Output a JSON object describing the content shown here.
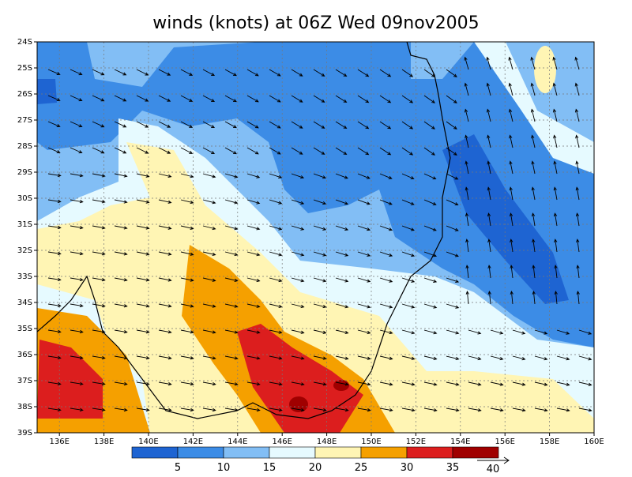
{
  "title": "winds (knots) at 06Z Wed 09nov2005",
  "lat_labels": [
    "24S",
    "25S",
    "26S",
    "27S",
    "28S",
    "29S",
    "30S",
    "31S",
    "32S",
    "33S",
    "34S",
    "35S",
    "36S",
    "37S",
    "38S",
    "39S"
  ],
  "lon_labels": [
    "136E",
    "138E",
    "140E",
    "142E",
    "144E",
    "146E",
    "148E",
    "150E",
    "152E",
    "154E",
    "156E",
    "158E",
    "160E"
  ],
  "colorbar": {
    "labels": [
      "5",
      "10",
      "15",
      "20",
      "25",
      "30",
      "35"
    ],
    "colors": [
      "#1e64d2",
      "#3c8ce6",
      "#82bef5",
      "#e6faff",
      "#fff5b4",
      "#f5a000",
      "#dc1e1e",
      "#a00000"
    ]
  },
  "vector_scale_label": "40"
}
